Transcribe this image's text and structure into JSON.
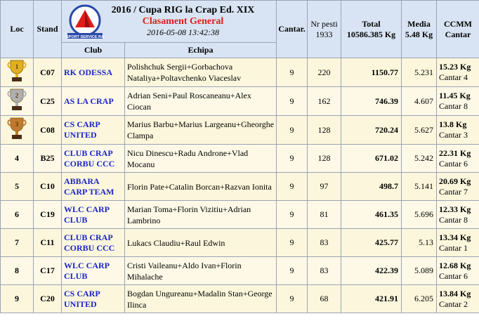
{
  "header": {
    "loc": "Loc",
    "stand": "Stand",
    "title": "2016 / Cupa RIG la Crap Ed. XIX",
    "subtitle": "Clasament General",
    "datetime": "2016-05-08 13:42:38",
    "logo_text": "SPORT SERVICE RA",
    "club": "Club",
    "echipa": "Echipa",
    "cantar": "Cantar.",
    "nr_pesti": "Nr pesti",
    "nr_pesti_count": "1933",
    "total": "Total",
    "total_value": "10586.385 Kg",
    "media": "Media",
    "media_value": "5.48 Kg",
    "ccmm": "CCMM",
    "ccmm_sub": "Cantar"
  },
  "colors": {
    "header_bg": "#d8e4f3",
    "row_bg": "#fcf7dc",
    "club_blue": "#1b25c9",
    "title_red": "#e11a1a"
  },
  "rows": [
    {
      "loc": "",
      "trophy": "gold-trophy-icon",
      "trophy_num": "1",
      "stand": "C07",
      "club": "RK ODESSA",
      "team": "Polishchuk Sergii+Gorbachova Nataliya+Poltavchenko Viaceslav",
      "cantar": "9",
      "pesti": "220",
      "total": "1150.77",
      "media": "5.231",
      "ccmm_kg": "15.23 Kg",
      "ccmm_cantar": "Cantar 4"
    },
    {
      "loc": "",
      "trophy": "silver-trophy-icon",
      "trophy_num": "2",
      "stand": "C25",
      "club": "AS LA CRAP",
      "team": "Adrian Seni+Paul Roscaneanu+Alex Ciocan",
      "cantar": "9",
      "pesti": "162",
      "total": "746.39",
      "media": "4.607",
      "ccmm_kg": "11.45 Kg",
      "ccmm_cantar": "Cantar 8"
    },
    {
      "loc": "",
      "trophy": "bronze-trophy-icon",
      "trophy_num": "3",
      "stand": "C08",
      "club": "CS CARP UNITED",
      "team": "Marius Barbu+Marius Largeanu+Gheorghe Clampa",
      "cantar": "9",
      "pesti": "128",
      "total": "720.24",
      "media": "5.627",
      "ccmm_kg": "13.8 Kg",
      "ccmm_cantar": "Cantar 3"
    },
    {
      "loc": "4",
      "stand": "B25",
      "club": "CLUB CRAP CORBU CCC",
      "team": "Nicu Dinescu+Radu Androne+Vlad Mocanu",
      "cantar": "9",
      "pesti": "128",
      "total": "671.02",
      "media": "5.242",
      "ccmm_kg": "22.31 Kg",
      "ccmm_cantar": "Cantar 6"
    },
    {
      "loc": "5",
      "stand": "C10",
      "club": "ABBARA CARP TEAM",
      "team": "Florin Pate+Catalin Borcan+Razvan Ionita",
      "cantar": "9",
      "pesti": "97",
      "total": "498.7",
      "media": "5.141",
      "ccmm_kg": "20.69 Kg",
      "ccmm_cantar": "Cantar 7"
    },
    {
      "loc": "6",
      "stand": "C19",
      "club": "WLC CARP CLUB",
      "team": "Marian Toma+Florin Vizitiu+Adrian Lambrino",
      "cantar": "9",
      "pesti": "81",
      "total": "461.35",
      "media": "5.696",
      "ccmm_kg": "12.33 Kg",
      "ccmm_cantar": "Cantar 8"
    },
    {
      "loc": "7",
      "stand": "C11",
      "club": "CLUB CRAP CORBU CCC",
      "team": "Lukacs Claudiu+Raul Edwin",
      "cantar": "9",
      "pesti": "83",
      "total": "425.77",
      "media": "5.13",
      "ccmm_kg": "13.34 Kg",
      "ccmm_cantar": "Cantar 1"
    },
    {
      "loc": "8",
      "stand": "C17",
      "club": "WLC CARP CLUB",
      "team": "Cristi Vaileanu+Aldo Ivan+Florin Mihalache",
      "cantar": "9",
      "pesti": "83",
      "total": "422.39",
      "media": "5.089",
      "ccmm_kg": "12.68 Kg",
      "ccmm_cantar": "Cantar 6"
    },
    {
      "loc": "9",
      "stand": "C20",
      "club": "CS CARP UNITED",
      "team": "Bogdan Ungureanu+Madalin Stan+George Ilinca",
      "cantar": "9",
      "pesti": "68",
      "total": "421.91",
      "media": "6.205",
      "ccmm_kg": "13.84 Kg",
      "ccmm_cantar": "Cantar 2"
    }
  ]
}
